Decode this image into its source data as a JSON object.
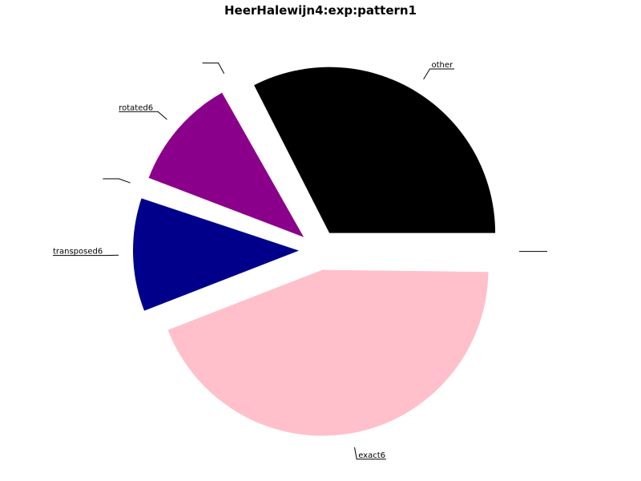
{
  "chart_data": {
    "type": "pie",
    "title": "HeerHalewijn4:exp:pattern1",
    "slices": [
      {
        "label": "other",
        "value": 32.5,
        "color": "#000000",
        "exploded": true
      },
      {
        "label": "",
        "value": 0.7,
        "color": "#ffffff",
        "exploded": true
      },
      {
        "label": "rotated6",
        "value": 11.0,
        "color": "#8b008b",
        "exploded": true
      },
      {
        "label": "",
        "value": 0.7,
        "color": "#ffffff",
        "exploded": true
      },
      {
        "label": "transposed6",
        "value": 11.0,
        "color": "#00008b",
        "exploded": true
      },
      {
        "label": "exact6",
        "value": 43.9,
        "color": "#ffc0cb",
        "exploded": true
      },
      {
        "label": "",
        "value": 0.2,
        "color": "#ffffff",
        "exploded": true
      }
    ],
    "start_direction": "east",
    "direction": "counterclockwise",
    "legend": "none"
  }
}
